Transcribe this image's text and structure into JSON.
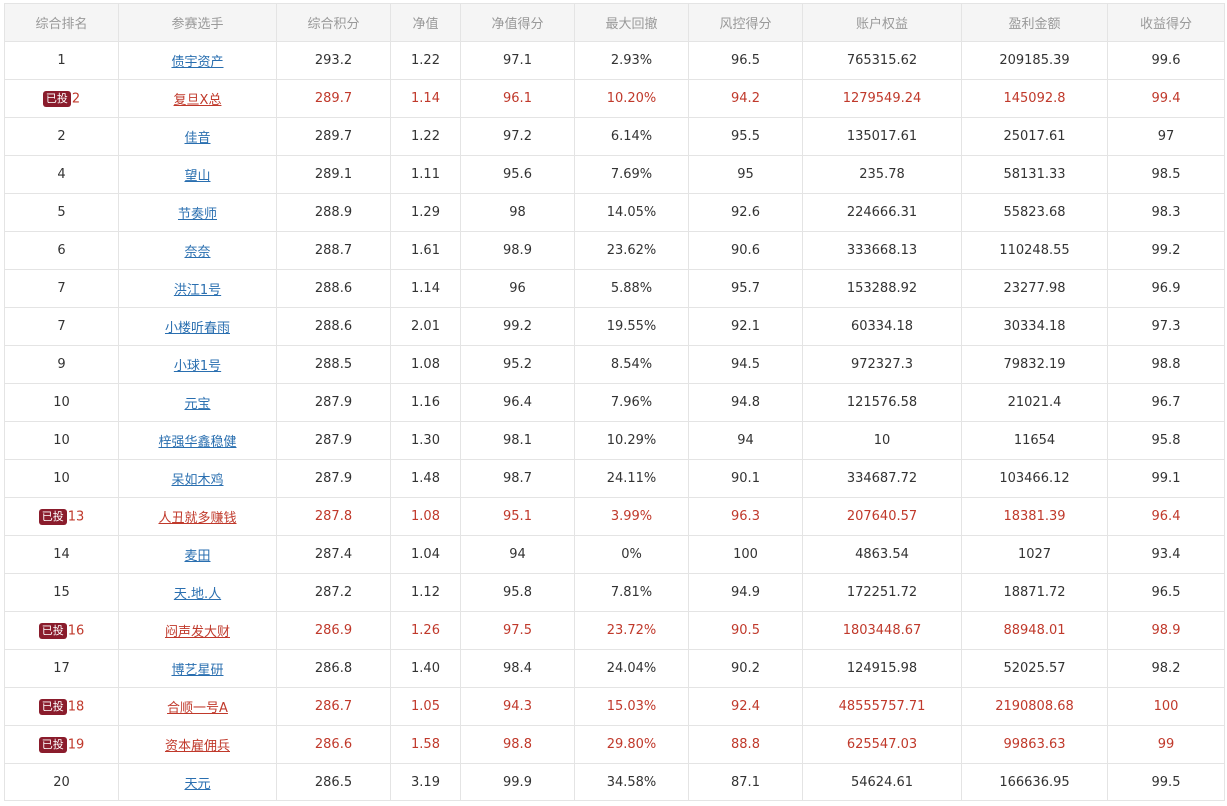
{
  "table": {
    "headers": [
      "综合排名",
      "参赛选手",
      "综合积分",
      "净值",
      "净值得分",
      "最大回撤",
      "风控得分",
      "账户权益",
      "盈利金额",
      "收益得分"
    ],
    "badge_label": "已投",
    "rows": [
      {
        "rank": "1",
        "invested": false,
        "player": "债宇资产",
        "score": "293.2",
        "nav": "1.22",
        "nav_score": "97.1",
        "max_drawdown": "2.93%",
        "risk_score": "96.5",
        "equity": "765315.62",
        "profit": "209185.39",
        "return_score": "99.6"
      },
      {
        "rank": "2",
        "invested": true,
        "player": "复旦X总",
        "score": "289.7",
        "nav": "1.14",
        "nav_score": "96.1",
        "max_drawdown": "10.20%",
        "risk_score": "94.2",
        "equity": "1279549.24",
        "profit": "145092.8",
        "return_score": "99.4"
      },
      {
        "rank": "2",
        "invested": false,
        "player": "佳音",
        "score": "289.7",
        "nav": "1.22",
        "nav_score": "97.2",
        "max_drawdown": "6.14%",
        "risk_score": "95.5",
        "equity": "135017.61",
        "profit": "25017.61",
        "return_score": "97"
      },
      {
        "rank": "4",
        "invested": false,
        "player": "望山",
        "score": "289.1",
        "nav": "1.11",
        "nav_score": "95.6",
        "max_drawdown": "7.69%",
        "risk_score": "95",
        "equity": "235.78",
        "profit": "58131.33",
        "return_score": "98.5"
      },
      {
        "rank": "5",
        "invested": false,
        "player": "节奏师",
        "score": "288.9",
        "nav": "1.29",
        "nav_score": "98",
        "max_drawdown": "14.05%",
        "risk_score": "92.6",
        "equity": "224666.31",
        "profit": "55823.68",
        "return_score": "98.3"
      },
      {
        "rank": "6",
        "invested": false,
        "player": "奈奈",
        "score": "288.7",
        "nav": "1.61",
        "nav_score": "98.9",
        "max_drawdown": "23.62%",
        "risk_score": "90.6",
        "equity": "333668.13",
        "profit": "110248.55",
        "return_score": "99.2"
      },
      {
        "rank": "7",
        "invested": false,
        "player": "洪江1号",
        "score": "288.6",
        "nav": "1.14",
        "nav_score": "96",
        "max_drawdown": "5.88%",
        "risk_score": "95.7",
        "equity": "153288.92",
        "profit": "23277.98",
        "return_score": "96.9"
      },
      {
        "rank": "7",
        "invested": false,
        "player": "小楼听春雨",
        "score": "288.6",
        "nav": "2.01",
        "nav_score": "99.2",
        "max_drawdown": "19.55%",
        "risk_score": "92.1",
        "equity": "60334.18",
        "profit": "30334.18",
        "return_score": "97.3"
      },
      {
        "rank": "9",
        "invested": false,
        "player": "小球1号",
        "score": "288.5",
        "nav": "1.08",
        "nav_score": "95.2",
        "max_drawdown": "8.54%",
        "risk_score": "94.5",
        "equity": "972327.3",
        "profit": "79832.19",
        "return_score": "98.8"
      },
      {
        "rank": "10",
        "invested": false,
        "player": "元宝",
        "score": "287.9",
        "nav": "1.16",
        "nav_score": "96.4",
        "max_drawdown": "7.96%",
        "risk_score": "94.8",
        "equity": "121576.58",
        "profit": "21021.4",
        "return_score": "96.7"
      },
      {
        "rank": "10",
        "invested": false,
        "player": "梓强华鑫稳健",
        "score": "287.9",
        "nav": "1.30",
        "nav_score": "98.1",
        "max_drawdown": "10.29%",
        "risk_score": "94",
        "equity": "10",
        "profit": "11654",
        "return_score": "95.8"
      },
      {
        "rank": "10",
        "invested": false,
        "player": "呆如木鸡",
        "score": "287.9",
        "nav": "1.48",
        "nav_score": "98.7",
        "max_drawdown": "24.11%",
        "risk_score": "90.1",
        "equity": "334687.72",
        "profit": "103466.12",
        "return_score": "99.1"
      },
      {
        "rank": "13",
        "invested": true,
        "player": "人丑就多赚钱",
        "score": "287.8",
        "nav": "1.08",
        "nav_score": "95.1",
        "max_drawdown": "3.99%",
        "risk_score": "96.3",
        "equity": "207640.57",
        "profit": "18381.39",
        "return_score": "96.4"
      },
      {
        "rank": "14",
        "invested": false,
        "player": "麦田",
        "score": "287.4",
        "nav": "1.04",
        "nav_score": "94",
        "max_drawdown": "0%",
        "risk_score": "100",
        "equity": "4863.54",
        "profit": "1027",
        "return_score": "93.4"
      },
      {
        "rank": "15",
        "invested": false,
        "player": "天.地.人",
        "score": "287.2",
        "nav": "1.12",
        "nav_score": "95.8",
        "max_drawdown": "7.81%",
        "risk_score": "94.9",
        "equity": "172251.72",
        "profit": "18871.72",
        "return_score": "96.5"
      },
      {
        "rank": "16",
        "invested": true,
        "player": "闷声发大财",
        "score": "286.9",
        "nav": "1.26",
        "nav_score": "97.5",
        "max_drawdown": "23.72%",
        "risk_score": "90.5",
        "equity": "1803448.67",
        "profit": "88948.01",
        "return_score": "98.9"
      },
      {
        "rank": "17",
        "invested": false,
        "player": "博艺星研",
        "score": "286.8",
        "nav": "1.40",
        "nav_score": "98.4",
        "max_drawdown": "24.04%",
        "risk_score": "90.2",
        "equity": "124915.98",
        "profit": "52025.57",
        "return_score": "98.2"
      },
      {
        "rank": "18",
        "invested": true,
        "player": "合顺一号A",
        "score": "286.7",
        "nav": "1.05",
        "nav_score": "94.3",
        "max_drawdown": "15.03%",
        "risk_score": "92.4",
        "equity": "48555757.71",
        "profit": "2190808.68",
        "return_score": "100"
      },
      {
        "rank": "19",
        "invested": true,
        "player": "资本雇佣兵",
        "score": "286.6",
        "nav": "1.58",
        "nav_score": "98.8",
        "max_drawdown": "29.80%",
        "risk_score": "88.8",
        "equity": "625547.03",
        "profit": "99863.63",
        "return_score": "99"
      },
      {
        "rank": "20",
        "invested": false,
        "player": "天元",
        "score": "286.5",
        "nav": "3.19",
        "nav_score": "99.9",
        "max_drawdown": "34.58%",
        "risk_score": "87.1",
        "equity": "54624.61",
        "profit": "166636.95",
        "return_score": "99.5"
      }
    ]
  },
  "colors": {
    "header_bg": "#f5f5f5",
    "header_text": "#999999",
    "border": "#e4e4e4",
    "link": "#2a6fb0",
    "invested_text": "#c0392b",
    "badge_bg": "#8a1c2c"
  }
}
